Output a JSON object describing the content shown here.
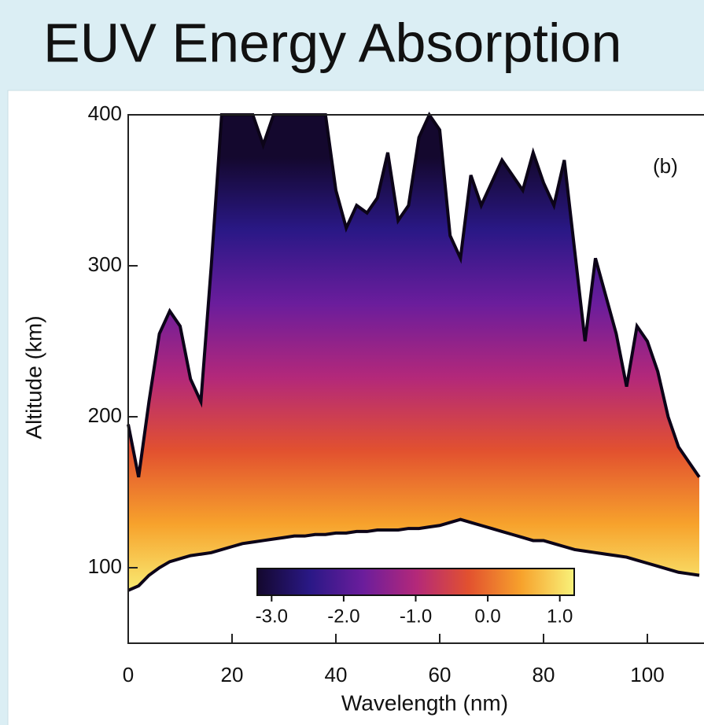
{
  "title": "EUV Energy Absorption",
  "chart_data": {
    "type": "band-area",
    "y_label": "Altitude (km)",
    "x_label": "Wavelength (nm)",
    "annotation": "(b)",
    "x": [
      0,
      2,
      4,
      6,
      8,
      10,
      12,
      14,
      16,
      18,
      20,
      22,
      24,
      26,
      28,
      30,
      32,
      34,
      36,
      38,
      40,
      42,
      44,
      46,
      48,
      50,
      52,
      54,
      56,
      58,
      60,
      62,
      64,
      66,
      68,
      70,
      72,
      74,
      76,
      78,
      80,
      82,
      84,
      86,
      88,
      90,
      92,
      94,
      96,
      98,
      100,
      102,
      104,
      106,
      108,
      110
    ],
    "series": [
      {
        "values": [
          195,
          160,
          210,
          255,
          270,
          260,
          225,
          210,
          300,
          400,
          400,
          400,
          400,
          380,
          400,
          400,
          400,
          400,
          400,
          400,
          350,
          325,
          340,
          335,
          345,
          375,
          330,
          340,
          385,
          400,
          390,
          320,
          305,
          360,
          340,
          355,
          370,
          360,
          350,
          375,
          355,
          340,
          370,
          310,
          250,
          305,
          280,
          255,
          220,
          260,
          250,
          230,
          200,
          180,
          170,
          160
        ]
      },
      {
        "values": [
          85,
          88,
          95,
          100,
          104,
          106,
          108,
          109,
          110,
          112,
          114,
          116,
          117,
          118,
          119,
          120,
          121,
          121,
          122,
          122,
          123,
          123,
          124,
          124,
          125,
          125,
          125,
          126,
          126,
          127,
          128,
          130,
          132,
          130,
          128,
          126,
          124,
          122,
          120,
          118,
          118,
          116,
          114,
          112,
          111,
          110,
          109,
          108,
          107,
          105,
          103,
          101,
          99,
          97,
          96,
          95
        ]
      }
    ],
    "xlim": [
      0,
      110
    ],
    "ylim": [
      50,
      400
    ],
    "xticks": [
      0,
      20,
      40,
      60,
      80,
      100
    ],
    "yticks": [
      100,
      200,
      300,
      400
    ],
    "colormap": [
      "#14082e",
      "#2a1886",
      "#6b1d9c",
      "#b3287a",
      "#e2512f",
      "#f7a22c",
      "#f8f27a"
    ],
    "colorbar": {
      "lim": [
        -3.2,
        1.2
      ],
      "ticks": [
        {
          "value": -3,
          "label": "-3.0"
        },
        {
          "value": -2,
          "label": "-2.0"
        },
        {
          "value": -1,
          "label": "-1.0"
        },
        {
          "value": 0,
          "label": "0.0"
        },
        {
          "value": 1,
          "label": "1.0"
        }
      ]
    }
  }
}
